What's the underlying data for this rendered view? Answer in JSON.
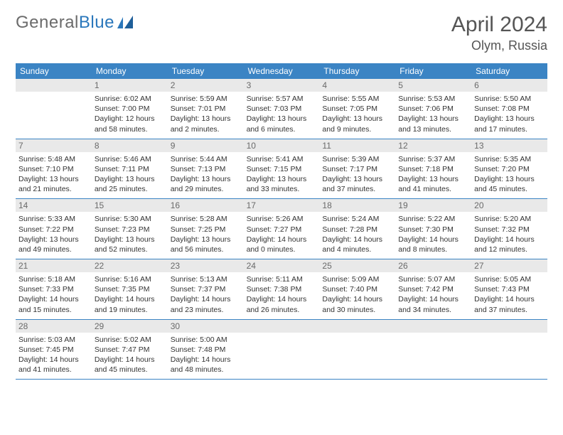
{
  "brand": {
    "part1": "General",
    "part2": "Blue"
  },
  "title": "April 2024",
  "location": "Olym, Russia",
  "header_bg": "#3b84c4",
  "weekdays": [
    "Sunday",
    "Monday",
    "Tuesday",
    "Wednesday",
    "Thursday",
    "Friday",
    "Saturday"
  ],
  "weeks": [
    [
      null,
      {
        "n": "1",
        "sr": "6:02 AM",
        "ss": "7:00 PM",
        "dl": "12 hours and 58 minutes."
      },
      {
        "n": "2",
        "sr": "5:59 AM",
        "ss": "7:01 PM",
        "dl": "13 hours and 2 minutes."
      },
      {
        "n": "3",
        "sr": "5:57 AM",
        "ss": "7:03 PM",
        "dl": "13 hours and 6 minutes."
      },
      {
        "n": "4",
        "sr": "5:55 AM",
        "ss": "7:05 PM",
        "dl": "13 hours and 9 minutes."
      },
      {
        "n": "5",
        "sr": "5:53 AM",
        "ss": "7:06 PM",
        "dl": "13 hours and 13 minutes."
      },
      {
        "n": "6",
        "sr": "5:50 AM",
        "ss": "7:08 PM",
        "dl": "13 hours and 17 minutes."
      }
    ],
    [
      {
        "n": "7",
        "sr": "5:48 AM",
        "ss": "7:10 PM",
        "dl": "13 hours and 21 minutes."
      },
      {
        "n": "8",
        "sr": "5:46 AM",
        "ss": "7:11 PM",
        "dl": "13 hours and 25 minutes."
      },
      {
        "n": "9",
        "sr": "5:44 AM",
        "ss": "7:13 PM",
        "dl": "13 hours and 29 minutes."
      },
      {
        "n": "10",
        "sr": "5:41 AM",
        "ss": "7:15 PM",
        "dl": "13 hours and 33 minutes."
      },
      {
        "n": "11",
        "sr": "5:39 AM",
        "ss": "7:17 PM",
        "dl": "13 hours and 37 minutes."
      },
      {
        "n": "12",
        "sr": "5:37 AM",
        "ss": "7:18 PM",
        "dl": "13 hours and 41 minutes."
      },
      {
        "n": "13",
        "sr": "5:35 AM",
        "ss": "7:20 PM",
        "dl": "13 hours and 45 minutes."
      }
    ],
    [
      {
        "n": "14",
        "sr": "5:33 AM",
        "ss": "7:22 PM",
        "dl": "13 hours and 49 minutes."
      },
      {
        "n": "15",
        "sr": "5:30 AM",
        "ss": "7:23 PM",
        "dl": "13 hours and 52 minutes."
      },
      {
        "n": "16",
        "sr": "5:28 AM",
        "ss": "7:25 PM",
        "dl": "13 hours and 56 minutes."
      },
      {
        "n": "17",
        "sr": "5:26 AM",
        "ss": "7:27 PM",
        "dl": "14 hours and 0 minutes."
      },
      {
        "n": "18",
        "sr": "5:24 AM",
        "ss": "7:28 PM",
        "dl": "14 hours and 4 minutes."
      },
      {
        "n": "19",
        "sr": "5:22 AM",
        "ss": "7:30 PM",
        "dl": "14 hours and 8 minutes."
      },
      {
        "n": "20",
        "sr": "5:20 AM",
        "ss": "7:32 PM",
        "dl": "14 hours and 12 minutes."
      }
    ],
    [
      {
        "n": "21",
        "sr": "5:18 AM",
        "ss": "7:33 PM",
        "dl": "14 hours and 15 minutes."
      },
      {
        "n": "22",
        "sr": "5:16 AM",
        "ss": "7:35 PM",
        "dl": "14 hours and 19 minutes."
      },
      {
        "n": "23",
        "sr": "5:13 AM",
        "ss": "7:37 PM",
        "dl": "14 hours and 23 minutes."
      },
      {
        "n": "24",
        "sr": "5:11 AM",
        "ss": "7:38 PM",
        "dl": "14 hours and 26 minutes."
      },
      {
        "n": "25",
        "sr": "5:09 AM",
        "ss": "7:40 PM",
        "dl": "14 hours and 30 minutes."
      },
      {
        "n": "26",
        "sr": "5:07 AM",
        "ss": "7:42 PM",
        "dl": "14 hours and 34 minutes."
      },
      {
        "n": "27",
        "sr": "5:05 AM",
        "ss": "7:43 PM",
        "dl": "14 hours and 37 minutes."
      }
    ],
    [
      {
        "n": "28",
        "sr": "5:03 AM",
        "ss": "7:45 PM",
        "dl": "14 hours and 41 minutes."
      },
      {
        "n": "29",
        "sr": "5:02 AM",
        "ss": "7:47 PM",
        "dl": "14 hours and 45 minutes."
      },
      {
        "n": "30",
        "sr": "5:00 AM",
        "ss": "7:48 PM",
        "dl": "14 hours and 48 minutes."
      },
      null,
      null,
      null,
      null
    ]
  ],
  "labels": {
    "sunrise": "Sunrise: ",
    "sunset": "Sunset: ",
    "daylight": "Daylight: "
  }
}
